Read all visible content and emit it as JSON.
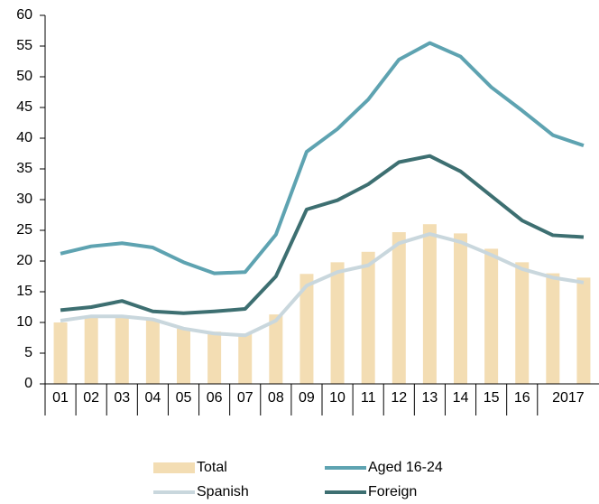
{
  "chart_data": {
    "type": "bar",
    "categories": [
      "01",
      "02",
      "03",
      "04",
      "05",
      "06",
      "07",
      "08",
      "09",
      "10",
      "11",
      "12",
      "13",
      "14",
      "15",
      "16",
      "2017",
      null
    ],
    "series": [
      {
        "name": "Total",
        "type": "bar",
        "color": "#f3ddb3",
        "values": [
          10,
          11,
          11,
          10.5,
          9,
          8.5,
          8.2,
          11.3,
          17.9,
          19.8,
          21.5,
          24.7,
          26,
          24.5,
          22,
          19.8,
          18,
          17.3
        ]
      },
      {
        "name": "Aged 16-24",
        "type": "line",
        "color": "#5ea3b1",
        "values": [
          21.2,
          22.4,
          22.9,
          22.2,
          19.8,
          18,
          18.2,
          24.3,
          37.8,
          41.5,
          46.3,
          52.8,
          55.5,
          53.3,
          48.3,
          44.5,
          40.5,
          38.8
        ]
      },
      {
        "name": "Spanish",
        "type": "line",
        "color": "#c9d7dd",
        "values": [
          10.3,
          11,
          11,
          10.5,
          9,
          8.2,
          7.9,
          10.3,
          16,
          18.2,
          19.3,
          22.9,
          24.4,
          23.1,
          21,
          18.7,
          17.3,
          16.5
        ]
      },
      {
        "name": "Foreign",
        "type": "line",
        "color": "#3d6f71",
        "values": [
          12,
          12.5,
          13.5,
          11.8,
          11.5,
          11.8,
          12.2,
          17.5,
          28.4,
          29.9,
          32.5,
          36.1,
          37.1,
          34.6,
          30.6,
          26.6,
          24.2,
          23.9
        ]
      }
    ],
    "ylim": [
      0,
      60
    ],
    "yticks": [
      0,
      5,
      10,
      15,
      20,
      25,
      30,
      35,
      40,
      45,
      50,
      55,
      60
    ]
  }
}
